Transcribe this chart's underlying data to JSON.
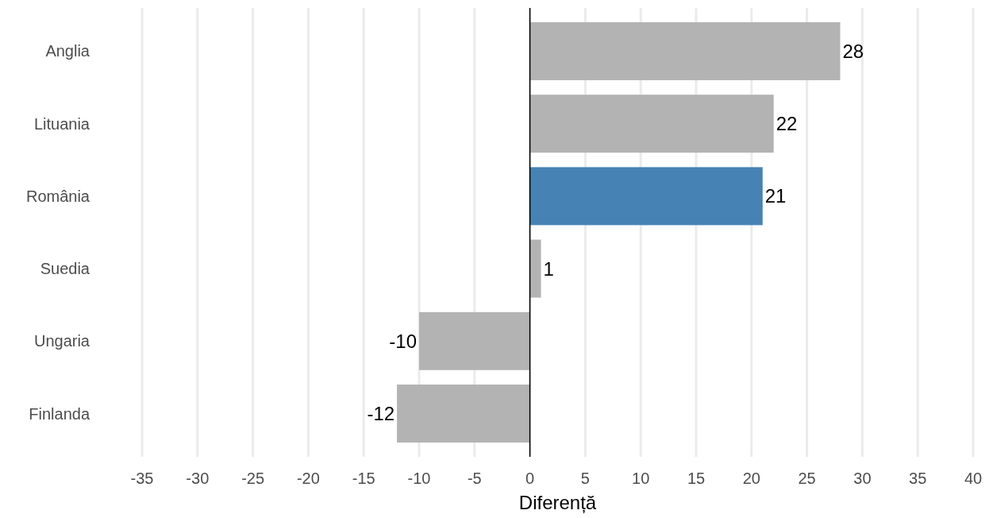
{
  "chart_data": {
    "type": "bar",
    "orientation": "horizontal",
    "xlabel": "Diferență",
    "categories": [
      "Anglia",
      "Lituania",
      "România",
      "Suedia",
      "Ungaria",
      "Finlanda"
    ],
    "values": [
      28,
      22,
      21,
      1,
      -10,
      -12
    ],
    "colors": [
      "#b3b3b3",
      "#b3b3b3",
      "#4682b4",
      "#b3b3b3",
      "#b3b3b3",
      "#b3b3b3"
    ],
    "xlim": [
      -35,
      40
    ],
    "xticks": [
      -35,
      -30,
      -25,
      -20,
      -15,
      -10,
      -5,
      0,
      5,
      10,
      15,
      20,
      25,
      30,
      35,
      40
    ],
    "grid": "x",
    "data_labels": true,
    "ref_lines": [
      {
        "axis": "x",
        "value": 0,
        "color": "#000000"
      }
    ]
  }
}
